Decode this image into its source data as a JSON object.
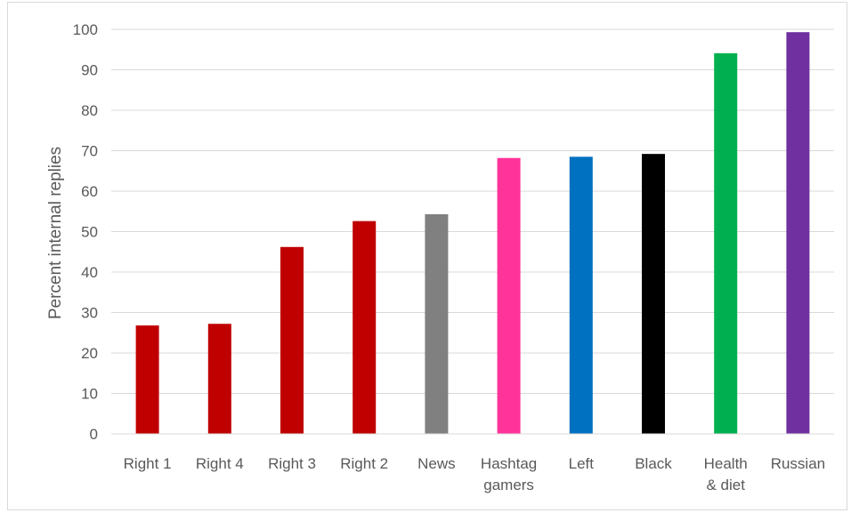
{
  "chart_data": {
    "type": "bar",
    "categories": [
      "Right 1",
      "Right 4",
      "Right 3",
      "Right 2",
      "News",
      "Hashtag gamers",
      "Left",
      "Black",
      "Health & diet",
      "Russian"
    ],
    "category_lines": [
      [
        "Right 1"
      ],
      [
        "Right 4"
      ],
      [
        "Right 3"
      ],
      [
        "Right 2"
      ],
      [
        "News"
      ],
      [
        "Hashtag",
        "gamers"
      ],
      [
        "Left"
      ],
      [
        "Black"
      ],
      [
        "Health",
        "& diet"
      ],
      [
        "Russian"
      ]
    ],
    "values": [
      26.8,
      27.2,
      46.2,
      52.6,
      54.3,
      68.2,
      68.5,
      69.2,
      94.1,
      99.3
    ],
    "colors": [
      "#c00000",
      "#c00000",
      "#c00000",
      "#c00000",
      "#808080",
      "#ff3399",
      "#0070c0",
      "#000000",
      "#00b050",
      "#7030a0"
    ],
    "title": "",
    "xlabel": "",
    "ylabel": "Percent internal replies",
    "ylim": [
      0,
      100
    ],
    "yticks": [
      0,
      10,
      20,
      30,
      40,
      50,
      60,
      70,
      80,
      90,
      100
    ],
    "grid": true,
    "legend": "none"
  }
}
